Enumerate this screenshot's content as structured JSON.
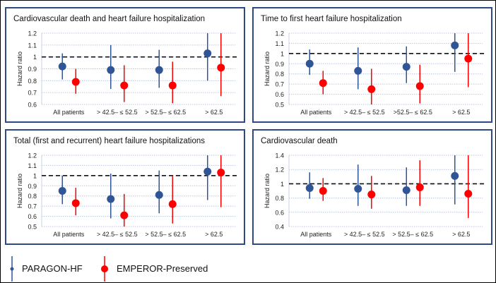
{
  "colors": {
    "paragon": "#2f5597",
    "emperor": "#ff0000",
    "border": "#2e4a86"
  },
  "legend": {
    "paragon": "PARAGON-HF",
    "emperor": "EMPEROR-Preserved"
  },
  "chart_data": [
    {
      "type": "forest",
      "title": "Cardiovascular death and heart failure hospitalization",
      "ylabel": "Hazard ratio",
      "ylim": [
        0.6,
        1.2
      ],
      "yticks": [
        0.6,
        0.7,
        0.8,
        0.9,
        1,
        1.1,
        1.2
      ],
      "ytick_labels": [
        "0.6",
        "0.7",
        "0.8",
        "0.9",
        "1",
        "1.1",
        "1.2"
      ],
      "reference_line": 1,
      "categories": [
        "All patients",
        "> 42.5– ≤ 52.5",
        "> 52.5– ≤ 62.5",
        "> 62.5"
      ],
      "series": [
        {
          "name": "PARAGON-HF",
          "hr": [
            0.92,
            0.89,
            0.89,
            1.03
          ],
          "lo": [
            0.81,
            0.73,
            0.74,
            0.8
          ],
          "hi": [
            1.03,
            1.1,
            1.06,
            1.2
          ]
        },
        {
          "name": "EMPEROR-Preserved",
          "hr": [
            0.79,
            0.76,
            0.76,
            0.91
          ],
          "lo": [
            0.69,
            0.62,
            0.61,
            0.67
          ],
          "hi": [
            0.9,
            0.93,
            0.96,
            1.2
          ]
        }
      ]
    },
    {
      "type": "forest",
      "title": "Time to first heart failure hospitalization",
      "ylabel": "Hazard ratio",
      "ylim": [
        0.5,
        1.2
      ],
      "yticks": [
        0.5,
        0.6,
        0.7,
        0.8,
        0.9,
        1,
        1.1,
        1.2
      ],
      "ytick_labels": [
        "0.5",
        "0.6",
        "0.7",
        "0.8",
        "0.9",
        "1",
        "1.1",
        "1.2"
      ],
      "reference_line": 1,
      "categories": [
        "All patients",
        "> 42.5– ≤ 52.5",
        ">52.5– ≤ 62.5",
        "> 62.5"
      ],
      "series": [
        {
          "name": "PARAGON-HF",
          "hr": [
            0.9,
            0.83,
            0.87,
            1.08
          ],
          "lo": [
            0.79,
            0.65,
            0.71,
            0.82
          ],
          "hi": [
            1.04,
            1.06,
            1.07,
            1.2
          ]
        },
        {
          "name": "EMPEROR-Preserved",
          "hr": [
            0.71,
            0.65,
            0.68,
            0.95
          ],
          "lo": [
            0.6,
            0.5,
            0.51,
            0.67
          ],
          "hi": [
            0.83,
            0.85,
            0.89,
            1.2
          ]
        }
      ]
    },
    {
      "type": "forest",
      "title": "Total (first and recurrent) heart failure hospitalizations",
      "ylabel": "Hazard ratio",
      "ylim": [
        0.5,
        1.2
      ],
      "yticks": [
        0.5,
        0.6,
        0.7,
        0.8,
        0.9,
        1,
        1.1,
        1.2
      ],
      "ytick_labels": [
        "0.5",
        "0.6",
        "0.7",
        "0.8",
        "0.9",
        "1",
        "1.1",
        "1.2"
      ],
      "reference_line": 1,
      "categories": [
        "All patients",
        "> 42.5– ≤ 52.5",
        "> 52.5– ≤ 62.5",
        "> 62.5"
      ],
      "series": [
        {
          "name": "PARAGON-HF",
          "hr": [
            0.85,
            0.77,
            0.81,
            1.04
          ],
          "lo": [
            0.72,
            0.58,
            0.63,
            0.76
          ],
          "hi": [
            1.0,
            1.02,
            1.05,
            1.2
          ]
        },
        {
          "name": "EMPEROR-Preserved",
          "hr": [
            0.73,
            0.61,
            0.72,
            1.03
          ],
          "lo": [
            0.61,
            0.5,
            0.53,
            0.69
          ],
          "hi": [
            0.88,
            0.82,
            1.0,
            1.2
          ]
        }
      ]
    },
    {
      "type": "forest",
      "title": "Cardiovascular death",
      "ylabel": "Hazard ratio",
      "ylim": [
        0.4,
        1.4
      ],
      "yticks": [
        0.4,
        0.6,
        0.8,
        1,
        1.2,
        1.4
      ],
      "ytick_labels": [
        "0.4",
        "0.6",
        "0.8",
        "1",
        "1.2",
        "1.4"
      ],
      "reference_line": 1,
      "categories": [
        "All patients",
        "> 42.5– ≤ 52.5",
        "> 52.5– ≤ 62.5",
        "> 62.5"
      ],
      "series": [
        {
          "name": "PARAGON-HF",
          "hr": [
            0.94,
            0.93,
            0.91,
            1.11
          ],
          "lo": [
            0.79,
            0.69,
            0.69,
            0.71
          ],
          "hi": [
            1.16,
            1.27,
            1.23,
            1.4
          ]
        },
        {
          "name": "EMPEROR-Preserved",
          "hr": [
            0.9,
            0.85,
            0.95,
            0.86
          ],
          "lo": [
            0.76,
            0.65,
            0.69,
            0.52
          ],
          "hi": [
            1.08,
            1.11,
            1.33,
            1.4
          ]
        }
      ]
    }
  ]
}
